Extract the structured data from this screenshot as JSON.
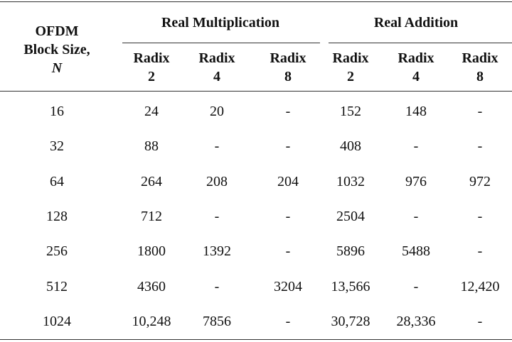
{
  "table": {
    "row_header": {
      "line1": "OFDM",
      "line2": "Block Size,",
      "symbol": "N"
    },
    "groups": [
      "Real Multiplication",
      "Real Addition"
    ],
    "subheaders": [
      {
        "word": "Radix",
        "number": "2"
      },
      {
        "word": "Radix",
        "number": "4"
      },
      {
        "word": "Radix",
        "number": "8"
      },
      {
        "word": "Radix",
        "number": "2"
      },
      {
        "word": "Radix",
        "number": "4"
      },
      {
        "word": "Radix",
        "number": "8"
      }
    ],
    "rows": [
      [
        "16",
        "24",
        "20",
        "-",
        "152",
        "148",
        "-"
      ],
      [
        "32",
        "88",
        "-",
        "-",
        "408",
        "-",
        "-"
      ],
      [
        "64",
        "264",
        "208",
        "204",
        "1032",
        "976",
        "972"
      ],
      [
        "128",
        "712",
        "-",
        "-",
        "2504",
        "-",
        "-"
      ],
      [
        "256",
        "1800",
        "1392",
        "-",
        "5896",
        "5488",
        "-"
      ],
      [
        "512",
        "4360",
        "-",
        "3204",
        "13,566",
        "-",
        "12,420"
      ],
      [
        "1024",
        "10,248",
        "7856",
        "-",
        "30,728",
        "28,336",
        "-"
      ]
    ]
  }
}
